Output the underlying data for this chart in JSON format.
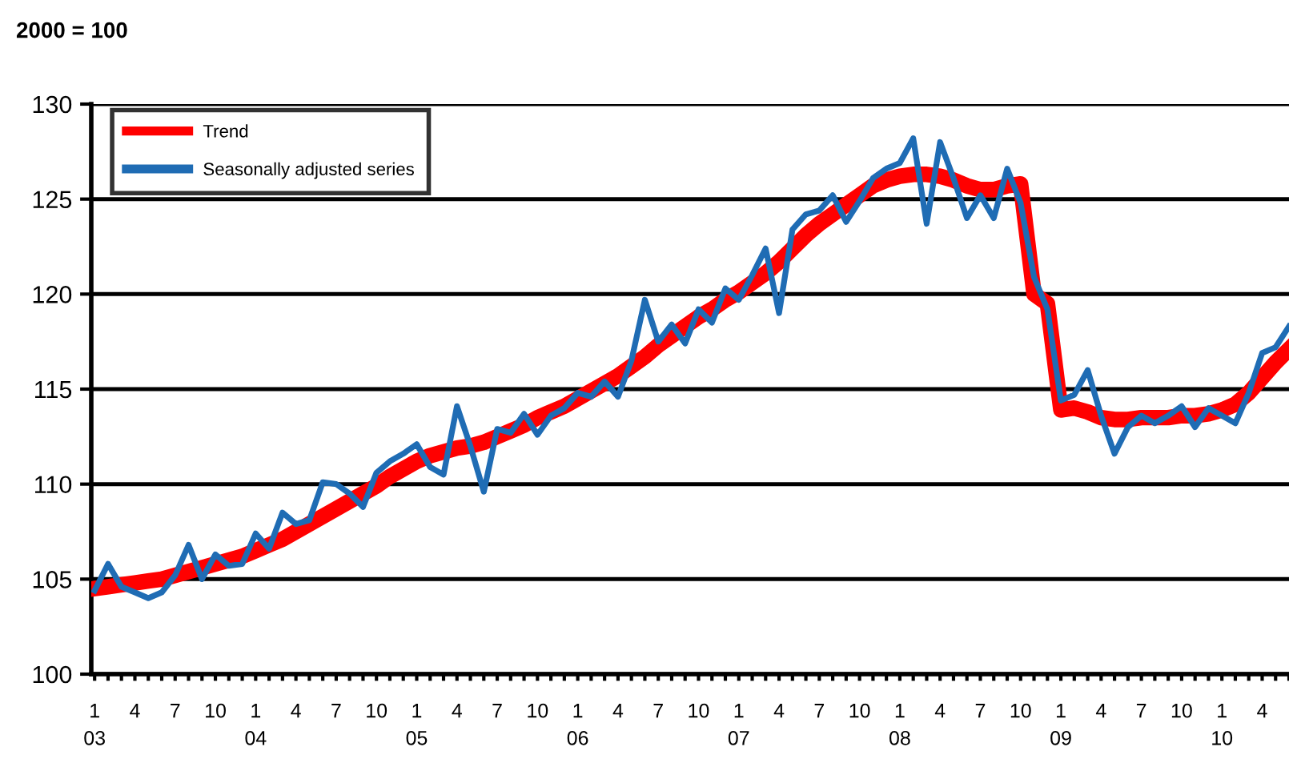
{
  "chart_data": {
    "type": "line",
    "title": "2000 = 100",
    "categories": [
      "1\n03",
      null,
      null,
      "4",
      null,
      null,
      "7",
      null,
      null,
      "10",
      null,
      null,
      "1\n04",
      null,
      null,
      "4",
      null,
      null,
      "7",
      null,
      null,
      "10",
      null,
      null,
      "1\n05",
      null,
      null,
      "4",
      null,
      null,
      "7",
      null,
      null,
      "10",
      null,
      null,
      "1\n06",
      null,
      null,
      "4",
      null,
      null,
      "7",
      null,
      null,
      "10",
      null,
      null,
      "1\n07",
      null,
      null,
      "4",
      null,
      null,
      "7",
      null,
      null,
      "10",
      null,
      null,
      "1\n08",
      null,
      null,
      "4",
      null,
      null,
      "7",
      null,
      null,
      "10",
      null,
      null,
      "1\n09",
      null,
      null,
      "4",
      null,
      null,
      "7",
      null,
      null,
      "10",
      null,
      null,
      "1\n10",
      null,
      null,
      "4",
      null,
      null
    ],
    "series": [
      {
        "name": "Trend",
        "color": "#ff0000",
        "values": [
          104.5,
          104.6,
          104.7,
          104.8,
          104.9,
          105.0,
          105.2,
          105.4,
          105.6,
          105.8,
          106.0,
          106.2,
          106.5,
          106.8,
          107.1,
          107.5,
          107.9,
          108.3,
          108.7,
          109.1,
          109.5,
          109.9,
          110.4,
          110.8,
          111.2,
          111.5,
          111.7,
          111.9,
          112.0,
          112.2,
          112.5,
          112.8,
          113.1,
          113.5,
          113.8,
          114.1,
          114.5,
          114.9,
          115.3,
          115.7,
          116.2,
          116.7,
          117.3,
          117.8,
          118.3,
          118.8,
          119.2,
          119.7,
          120.1,
          120.6,
          121.1,
          121.7,
          122.4,
          123.1,
          123.7,
          124.2,
          124.7,
          125.2,
          125.7,
          126.0,
          126.2,
          126.3,
          126.3,
          126.2,
          126.0,
          125.7,
          125.5,
          125.5,
          125.7,
          125.8,
          120.0,
          119.5,
          113.9,
          114.0,
          113.8,
          113.5,
          113.4,
          113.4,
          113.5,
          113.5,
          113.5,
          113.6,
          113.6,
          113.7,
          113.9,
          114.2,
          114.8,
          115.6,
          116.4,
          117.1
        ]
      },
      {
        "name": "Seasonally adjusted series",
        "color": "#1f6cb4",
        "values": [
          104.4,
          105.8,
          104.6,
          104.3,
          104.0,
          104.3,
          105.2,
          106.8,
          105.0,
          106.3,
          105.7,
          105.8,
          107.4,
          106.6,
          108.5,
          107.9,
          108.1,
          110.1,
          110.0,
          109.5,
          108.8,
          110.6,
          111.2,
          111.6,
          112.1,
          110.9,
          110.5,
          114.1,
          112.0,
          109.6,
          112.9,
          112.7,
          113.7,
          112.6,
          113.6,
          114.0,
          114.8,
          114.6,
          115.4,
          114.6,
          116.5,
          119.7,
          117.5,
          118.4,
          117.4,
          119.2,
          118.5,
          120.3,
          119.7,
          121.0,
          122.4,
          119.0,
          123.4,
          124.2,
          124.4,
          125.2,
          123.8,
          124.9,
          126.1,
          126.6,
          126.9,
          128.2,
          123.7,
          128.0,
          126.1,
          124.0,
          125.2,
          124.0,
          126.6,
          124.8,
          120.9,
          119.2,
          114.4,
          114.7,
          116.0,
          113.6,
          111.6,
          113.0,
          113.6,
          113.2,
          113.6,
          114.1,
          113.0,
          114.0,
          113.6,
          113.2,
          114.8,
          116.9,
          117.2,
          118.3
        ]
      }
    ],
    "ylim": [
      100,
      130
    ],
    "yticks": [
      100,
      105,
      110,
      115,
      120,
      125,
      130
    ],
    "grid": "y",
    "legend": "top left",
    "line_style": "solid",
    "marker": "none"
  }
}
